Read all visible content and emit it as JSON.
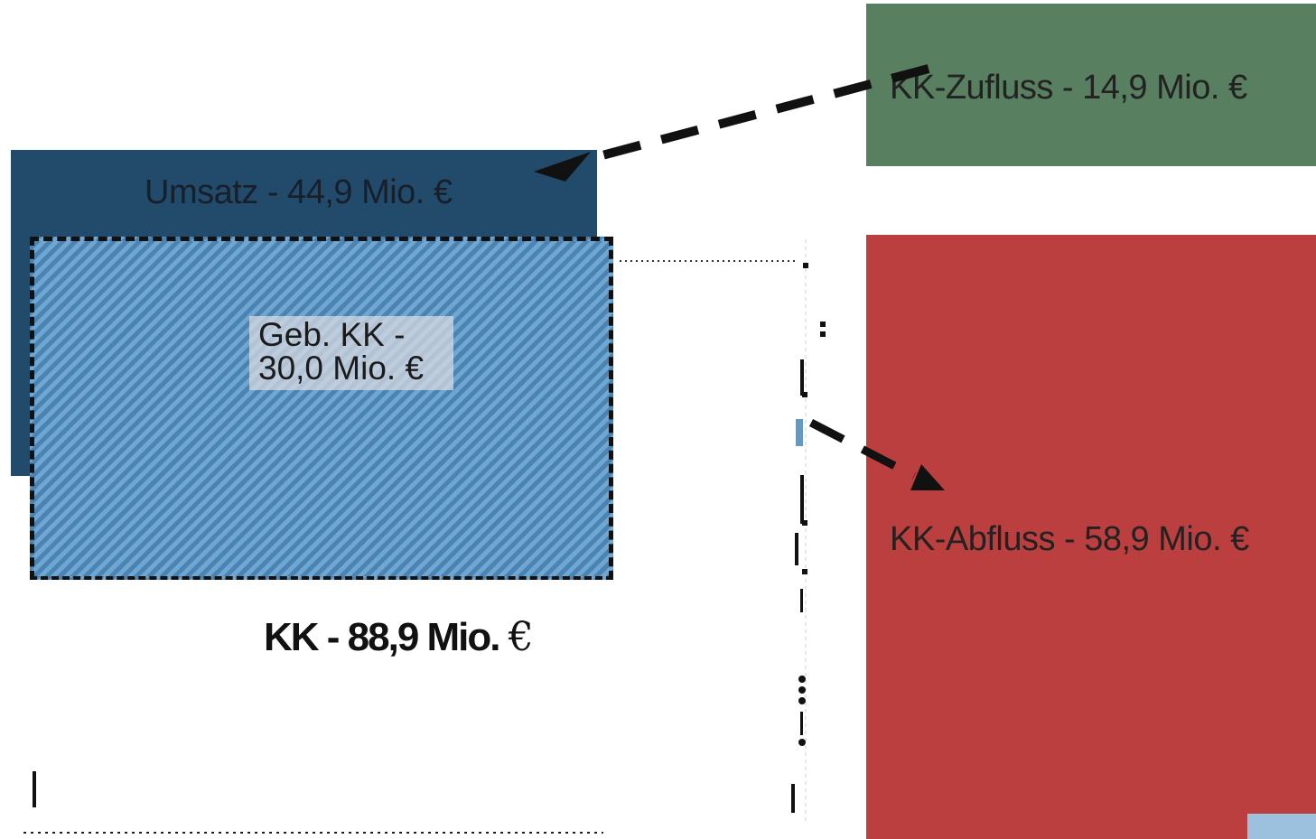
{
  "diagram": {
    "inflow": {
      "label": "KK-Zufluss - 14,9 Mio. €"
    },
    "outflow": {
      "label": "KK-Abfluss - 58,9 Mio. €"
    },
    "revenue": {
      "label": "Umsatz - 44,9 Mio. €"
    },
    "bound": {
      "line1": "Geb. KK -",
      "line2": "30,0 Mio. €"
    },
    "total": {
      "text": "KK - 88,9 Mio.",
      "currency": "€"
    }
  },
  "colors": {
    "inflow_green": "#587f60",
    "outflow_red": "#bc3f3f",
    "revenue_navy": "#224b6b",
    "kk_blue": "#6299c5",
    "arrow_black": "#111111"
  }
}
